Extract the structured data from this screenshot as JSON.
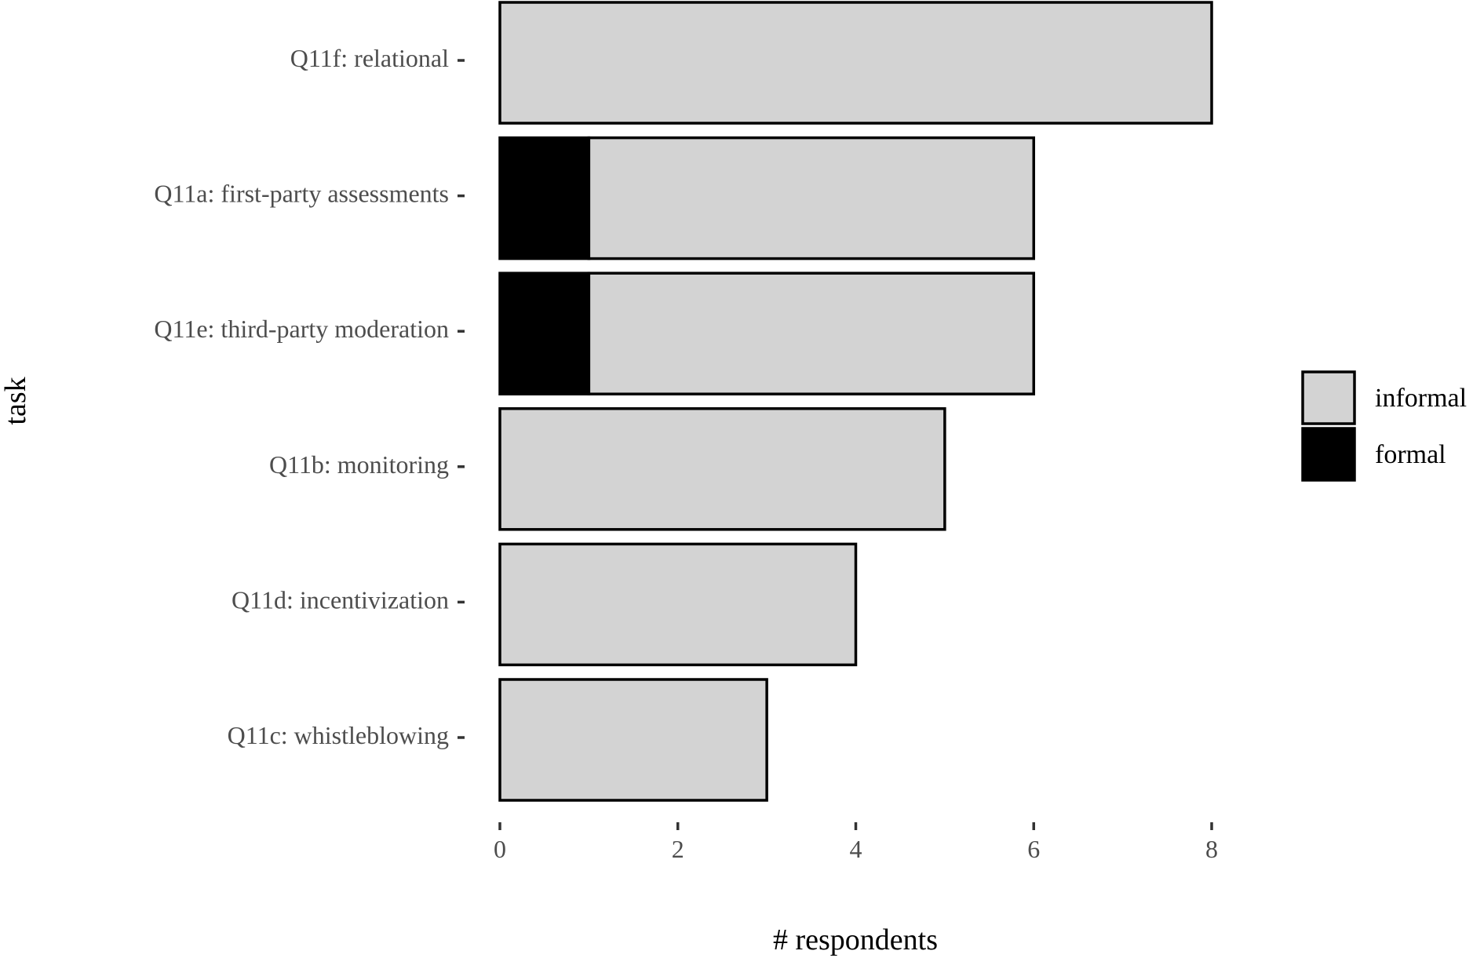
{
  "chart_data": {
    "type": "bar",
    "orientation": "horizontal",
    "stacked": true,
    "categories": [
      "Q11f: relational",
      "Q11a: first-party assessments",
      "Q11e: third-party moderation",
      "Q11b: monitoring",
      "Q11d: incentivization",
      "Q11c: whistleblowing"
    ],
    "series": [
      {
        "name": "formal",
        "color": "#000000",
        "values": [
          0,
          1,
          1,
          0,
          0,
          0
        ]
      },
      {
        "name": "informal",
        "color": "#d3d3d3",
        "values": [
          8,
          5,
          5,
          5,
          4,
          3
        ]
      }
    ],
    "legend_order": [
      "informal",
      "formal"
    ],
    "xlabel": "# respondents",
    "ylabel": "task",
    "xlim": [
      0,
      8
    ],
    "x_ticks": [
      0,
      2,
      4,
      6,
      8
    ],
    "grid": false,
    "legend_position": "right"
  }
}
